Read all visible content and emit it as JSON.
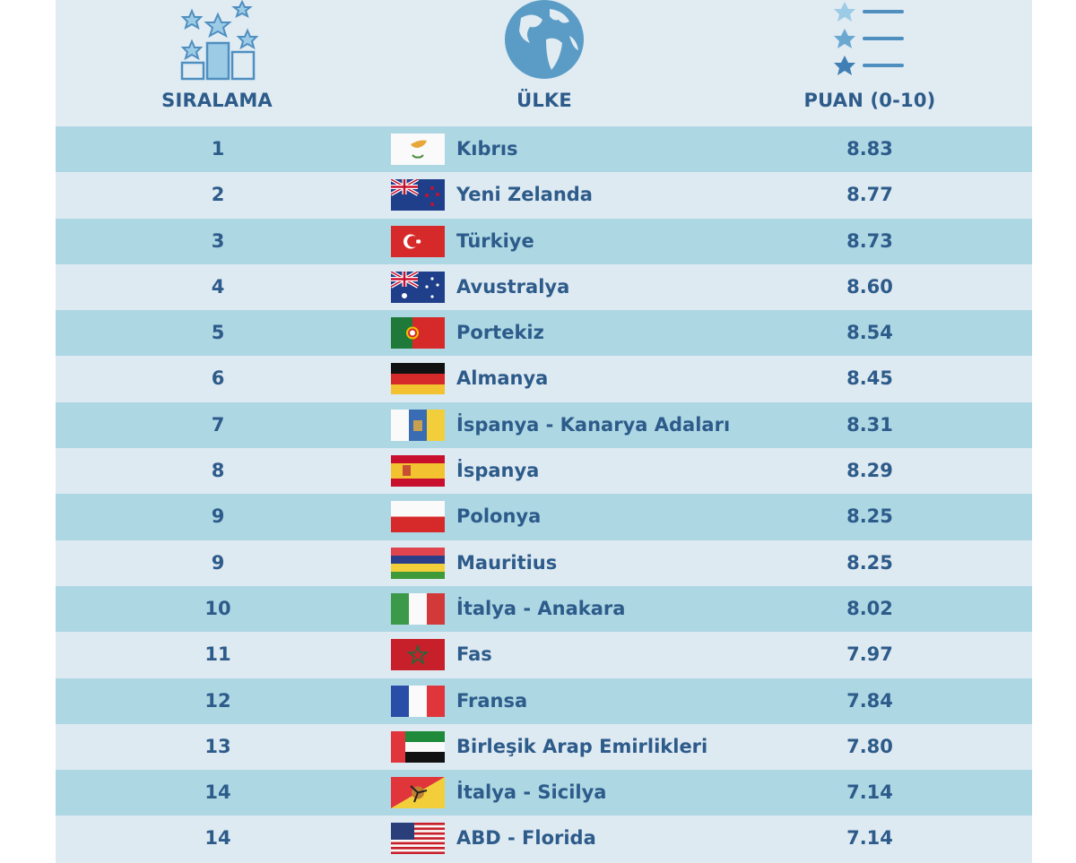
{
  "header": {
    "rank_label": "SIRALAMA",
    "country_label": "ÜLKE",
    "score_label": "PUAN (0-10)",
    "icons": [
      "podium-stars-icon",
      "globe-icon",
      "star-list-icon"
    ]
  },
  "colors": {
    "text": "#2d5b8a",
    "row_dark": "#aed7e4",
    "row_light": "#deeaf2",
    "icon": "#5b9cc6"
  },
  "rows": [
    {
      "rank": "1",
      "country": "Kıbrıs",
      "score": "8.83",
      "flag": "cyprus"
    },
    {
      "rank": "2",
      "country": "Yeni Zelanda",
      "score": "8.77",
      "flag": "new-zealand"
    },
    {
      "rank": "3",
      "country": "Türkiye",
      "score": "8.73",
      "flag": "turkey"
    },
    {
      "rank": "4",
      "country": "Avustralya",
      "score": "8.60",
      "flag": "australia"
    },
    {
      "rank": "5",
      "country": "Portekiz",
      "score": "8.54",
      "flag": "portugal"
    },
    {
      "rank": "6",
      "country": "Almanya",
      "score": "8.45",
      "flag": "germany"
    },
    {
      "rank": "7",
      "country": "İspanya - Kanarya Adaları",
      "score": "8.31",
      "flag": "canary-islands"
    },
    {
      "rank": "8",
      "country": "İspanya",
      "score": "8.29",
      "flag": "spain"
    },
    {
      "rank": "9",
      "country": "Polonya",
      "score": "8.25",
      "flag": "poland"
    },
    {
      "rank": "9",
      "country": "Mauritius",
      "score": "8.25",
      "flag": "mauritius"
    },
    {
      "rank": "10",
      "country": "İtalya - Anakara",
      "score": "8.02",
      "flag": "italy"
    },
    {
      "rank": "11",
      "country": "Fas",
      "score": "7.97",
      "flag": "morocco"
    },
    {
      "rank": "12",
      "country": "Fransa",
      "score": "7.84",
      "flag": "france"
    },
    {
      "rank": "13",
      "country": "Birleşik Arap Emirlikleri",
      "score": "7.80",
      "flag": "uae"
    },
    {
      "rank": "14",
      "country": "İtalya - Sicilya",
      "score": "7.14",
      "flag": "sicily"
    },
    {
      "rank": "14",
      "country": "ABD - Florida",
      "score": "7.14",
      "flag": "usa"
    }
  ]
}
